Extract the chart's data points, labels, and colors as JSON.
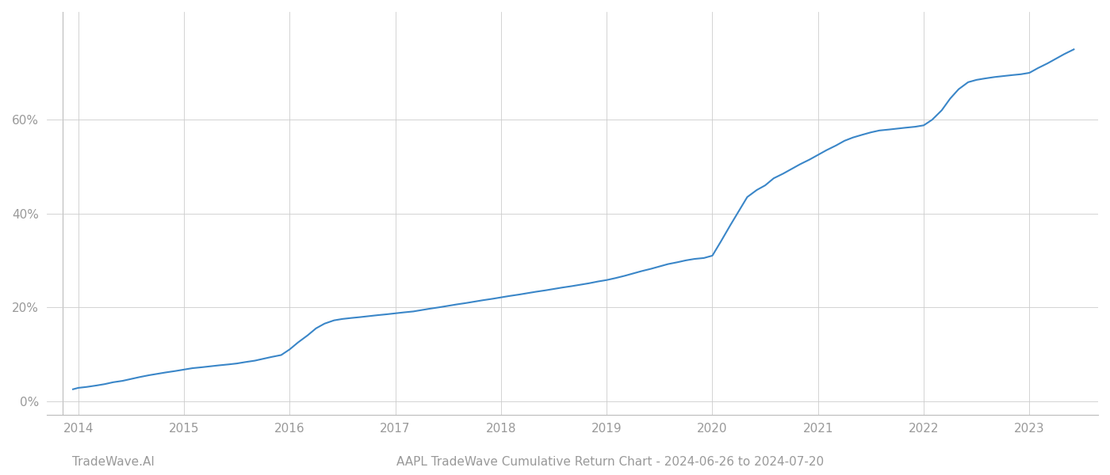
{
  "title": "AAPL TradeWave Cumulative Return Chart - 2024-06-26 to 2024-07-20",
  "watermark": "TradeWave.AI",
  "line_color": "#3a86c8",
  "background_color": "#ffffff",
  "grid_color": "#cccccc",
  "x_years": [
    2014,
    2015,
    2016,
    2017,
    2018,
    2019,
    2020,
    2021,
    2022,
    2023
  ],
  "y_ticks": [
    0,
    20,
    40,
    60
  ],
  "y_tick_labels": [
    "0%",
    "20%",
    "40%",
    "60%"
  ],
  "x_data": [
    2013.95,
    2014.0,
    2014.08,
    2014.17,
    2014.25,
    2014.33,
    2014.42,
    2014.5,
    2014.58,
    2014.67,
    2014.75,
    2014.83,
    2014.92,
    2015.0,
    2015.08,
    2015.17,
    2015.25,
    2015.33,
    2015.42,
    2015.5,
    2015.58,
    2015.67,
    2015.75,
    2015.83,
    2015.92,
    2016.0,
    2016.08,
    2016.17,
    2016.25,
    2016.33,
    2016.42,
    2016.5,
    2016.58,
    2016.67,
    2016.75,
    2016.83,
    2016.92,
    2017.0,
    2017.08,
    2017.17,
    2017.25,
    2017.33,
    2017.42,
    2017.5,
    2017.58,
    2017.67,
    2017.75,
    2017.83,
    2017.92,
    2018.0,
    2018.08,
    2018.17,
    2018.25,
    2018.33,
    2018.42,
    2018.5,
    2018.58,
    2018.67,
    2018.75,
    2018.83,
    2018.92,
    2019.0,
    2019.08,
    2019.17,
    2019.25,
    2019.33,
    2019.42,
    2019.5,
    2019.58,
    2019.67,
    2019.75,
    2019.83,
    2019.92,
    2020.0,
    2020.08,
    2020.17,
    2020.25,
    2020.33,
    2020.42,
    2020.5,
    2020.58,
    2020.67,
    2020.75,
    2020.83,
    2020.92,
    2021.0,
    2021.08,
    2021.17,
    2021.25,
    2021.33,
    2021.42,
    2021.5,
    2021.58,
    2021.67,
    2021.75,
    2021.83,
    2021.92,
    2022.0,
    2022.08,
    2022.17,
    2022.25,
    2022.33,
    2022.42,
    2022.5,
    2022.58,
    2022.67,
    2022.75,
    2022.83,
    2022.92,
    2023.0,
    2023.08,
    2023.17,
    2023.25,
    2023.33,
    2023.42
  ],
  "y_data": [
    2.5,
    2.8,
    3.0,
    3.3,
    3.6,
    4.0,
    4.3,
    4.7,
    5.1,
    5.5,
    5.8,
    6.1,
    6.4,
    6.7,
    7.0,
    7.2,
    7.4,
    7.6,
    7.8,
    8.0,
    8.3,
    8.6,
    9.0,
    9.4,
    9.8,
    11.0,
    12.5,
    14.0,
    15.5,
    16.5,
    17.2,
    17.5,
    17.7,
    17.9,
    18.1,
    18.3,
    18.5,
    18.7,
    18.9,
    19.1,
    19.4,
    19.7,
    20.0,
    20.3,
    20.6,
    20.9,
    21.2,
    21.5,
    21.8,
    22.1,
    22.4,
    22.7,
    23.0,
    23.3,
    23.6,
    23.9,
    24.2,
    24.5,
    24.8,
    25.1,
    25.5,
    25.8,
    26.2,
    26.7,
    27.2,
    27.7,
    28.2,
    28.7,
    29.2,
    29.6,
    30.0,
    30.3,
    30.5,
    31.0,
    34.0,
    37.5,
    40.5,
    43.5,
    45.0,
    46.0,
    47.5,
    48.5,
    49.5,
    50.5,
    51.5,
    52.5,
    53.5,
    54.5,
    55.5,
    56.2,
    56.8,
    57.3,
    57.7,
    57.9,
    58.1,
    58.3,
    58.5,
    58.8,
    60.0,
    62.0,
    64.5,
    66.5,
    68.0,
    68.5,
    68.8,
    69.1,
    69.3,
    69.5,
    69.7,
    70.0,
    71.0,
    72.0,
    73.0,
    74.0,
    75.0
  ],
  "xlim": [
    2013.7,
    2023.65
  ],
  "ylim": [
    -3,
    83
  ],
  "line_width": 1.5,
  "title_fontsize": 11,
  "watermark_fontsize": 11,
  "tick_fontsize": 11,
  "tick_color": "#999999",
  "axis_color": "#999999",
  "spine_color": "#bbbbbb"
}
